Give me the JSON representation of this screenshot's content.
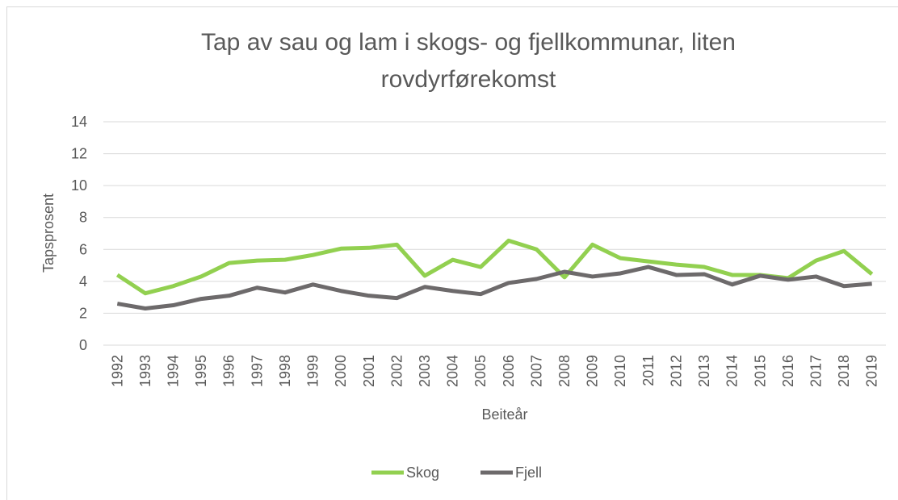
{
  "chart_data": {
    "type": "line",
    "title": "Tap av sau og lam i skogs- og fjellkommunar, liten rovdyrførekomst",
    "x_label": "Beiteår",
    "y_label": "Tapsprosent",
    "categories": [
      "1992",
      "1993",
      "1994",
      "1995",
      "1996",
      "1997",
      "1998",
      "1999",
      "2000",
      "2001",
      "2002",
      "2003",
      "2004",
      "2005",
      "2006",
      "2007",
      "2008",
      "2009",
      "2010",
      "2011",
      "2012",
      "2013",
      "2014",
      "2015",
      "2016",
      "2017",
      "2018",
      "2019"
    ],
    "series": [
      {
        "name": "Skog",
        "color": "#92d050",
        "values": [
          4.4,
          3.25,
          3.7,
          4.3,
          5.15,
          5.3,
          5.35,
          5.65,
          6.05,
          6.1,
          6.3,
          4.35,
          5.35,
          4.9,
          6.55,
          6.0,
          4.25,
          6.3,
          5.45,
          5.25,
          5.05,
          4.9,
          4.4,
          4.4,
          4.2,
          5.3,
          5.9,
          4.45
        ]
      },
      {
        "name": "Fjell",
        "color": "#6d6a6b",
        "values": [
          2.6,
          2.3,
          2.5,
          2.9,
          3.1,
          3.6,
          3.3,
          3.8,
          3.4,
          3.1,
          2.95,
          3.65,
          3.4,
          3.2,
          3.9,
          4.15,
          4.6,
          4.3,
          4.5,
          4.9,
          4.4,
          4.45,
          3.8,
          4.35,
          4.1,
          4.3,
          3.7,
          3.85
        ]
      }
    ],
    "ylim": [
      0,
      14
    ],
    "yticks": [
      0,
      2,
      4,
      6,
      8,
      10,
      12,
      14
    ],
    "grid": true,
    "legend": "bottom"
  }
}
